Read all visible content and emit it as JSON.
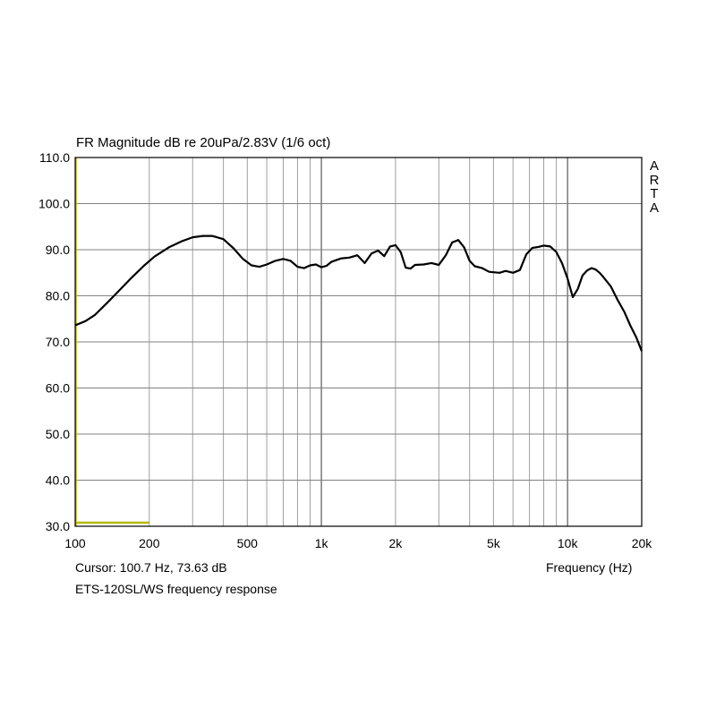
{
  "chart_data": {
    "type": "line",
    "title": "FR Magnitude dB re 20uPa/2.83V (1/6 oct)",
    "xlabel": "Frequency (Hz)",
    "ylabel": "",
    "x_scale": "log",
    "xlim": [
      100,
      20000
    ],
    "ylim": [
      30,
      110
    ],
    "grid": true,
    "x_ticks": [
      {
        "value": 100,
        "label": "100"
      },
      {
        "value": 200,
        "label": "200"
      },
      {
        "value": 500,
        "label": "500"
      },
      {
        "value": 1000,
        "label": "1k"
      },
      {
        "value": 2000,
        "label": "2k"
      },
      {
        "value": 5000,
        "label": "5k"
      },
      {
        "value": 10000,
        "label": "10k"
      },
      {
        "value": 20000,
        "label": "20k"
      }
    ],
    "y_ticks": [
      {
        "value": 30,
        "label": "30.0"
      },
      {
        "value": 40,
        "label": "40.0"
      },
      {
        "value": 50,
        "label": "50.0"
      },
      {
        "value": 60,
        "label": "60.0"
      },
      {
        "value": 70,
        "label": "70.0"
      },
      {
        "value": 80,
        "label": "80.0"
      },
      {
        "value": 90,
        "label": "90.0"
      },
      {
        "value": 100,
        "label": "100.0"
      },
      {
        "value": 110,
        "label": "110.0"
      }
    ],
    "series": [
      {
        "color": "#000000",
        "x": [
          100,
          110,
          120,
          135,
          150,
          170,
          190,
          210,
          240,
          270,
          300,
          330,
          360,
          400,
          440,
          480,
          520,
          560,
          600,
          650,
          700,
          750,
          800,
          850,
          900,
          950,
          1000,
          1050,
          1100,
          1200,
          1300,
          1400,
          1500,
          1600,
          1700,
          1800,
          1900,
          2000,
          2100,
          2200,
          2300,
          2400,
          2600,
          2800,
          3000,
          3200,
          3400,
          3600,
          3800,
          4000,
          4200,
          4500,
          4800,
          5000,
          5300,
          5600,
          6000,
          6400,
          6800,
          7200,
          7600,
          8000,
          8500,
          9000,
          9500,
          10000,
          10500,
          11000,
          11500,
          12000,
          12500,
          13000,
          13500,
          14000,
          15000,
          16000,
          17000,
          18000,
          19000,
          20000
        ],
        "y": [
          73.6,
          74.5,
          75.8,
          78.5,
          81.0,
          84.0,
          86.5,
          88.5,
          90.5,
          91.8,
          92.7,
          93.0,
          93.0,
          92.3,
          90.3,
          88.0,
          86.6,
          86.3,
          86.8,
          87.6,
          88.0,
          87.6,
          86.3,
          86.0,
          86.6,
          86.8,
          86.2,
          86.5,
          87.4,
          88.1,
          88.3,
          88.8,
          87.1,
          89.2,
          89.8,
          88.6,
          90.7,
          91.0,
          89.5,
          86.1,
          85.9,
          86.7,
          86.8,
          87.1,
          86.7,
          88.8,
          91.6,
          92.1,
          90.5,
          87.6,
          86.4,
          86.0,
          85.2,
          85.1,
          85.0,
          85.4,
          85.0,
          85.6,
          89.0,
          90.4,
          90.6,
          90.9,
          90.7,
          89.5,
          87.0,
          83.7,
          79.7,
          81.5,
          84.4,
          85.5,
          86.0,
          85.7,
          85.0,
          84.0,
          82.0,
          79.0,
          76.5,
          73.5,
          71.0,
          68.0
        ]
      }
    ]
  },
  "cursor_readout": "Cursor: 100.7 Hz, 73.63 dB",
  "caption": "ETS-120SL/WS frequency response",
  "brand": "ARTA",
  "colors": {
    "trace": "#000000",
    "grid": "#a0a0a0",
    "axis": "#000000",
    "cursor": "#b8b800"
  }
}
